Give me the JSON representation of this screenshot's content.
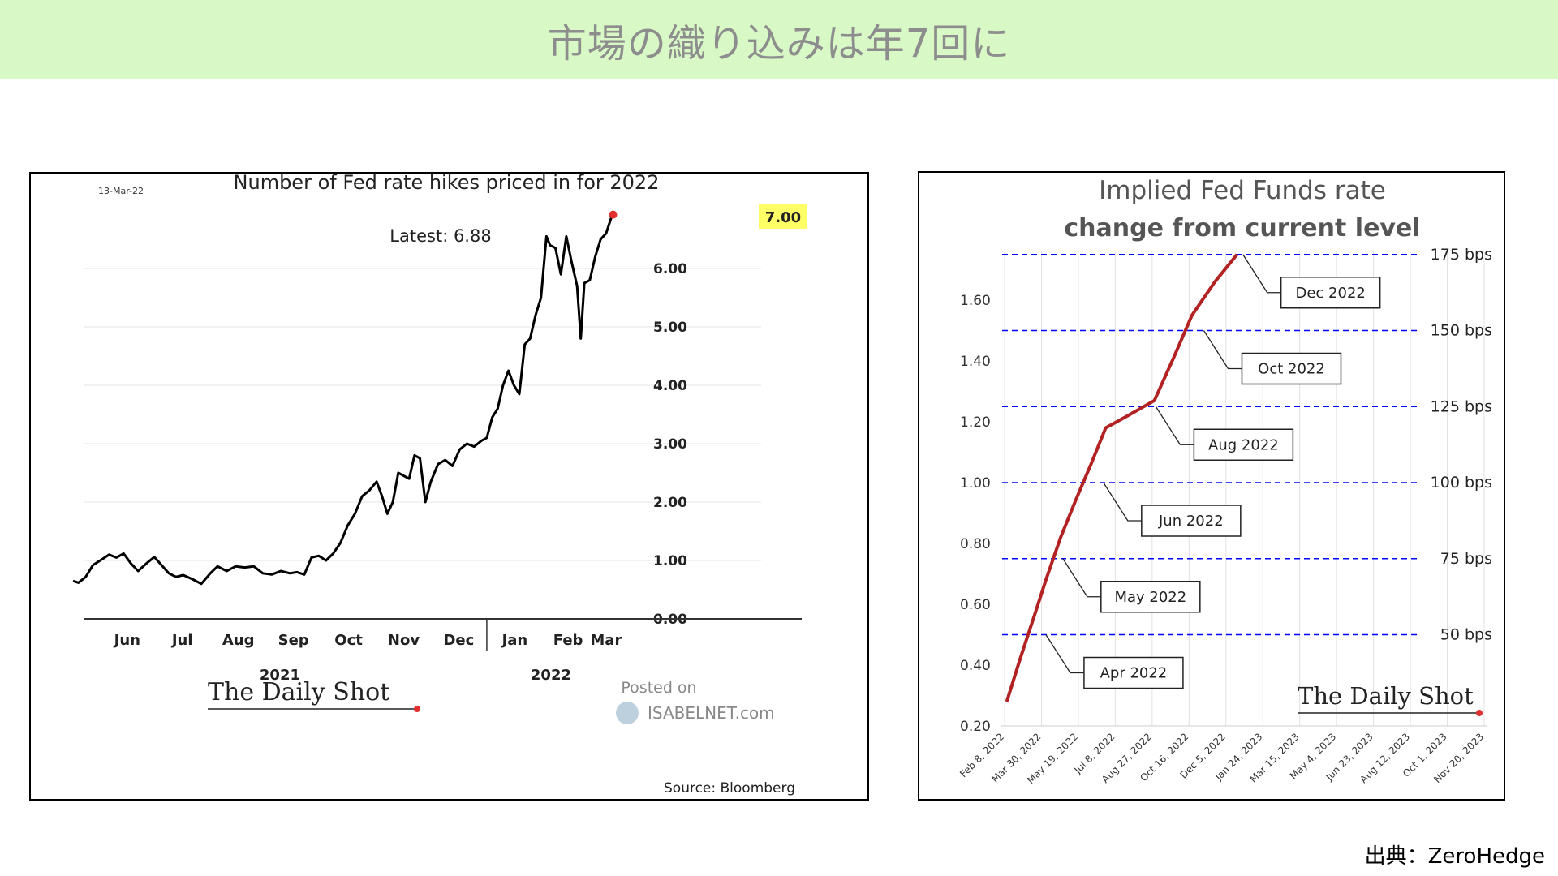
{
  "page": {
    "title": "市場の織り込みは年7回に",
    "source_credit": "出典：ZeroHedge"
  },
  "chart_data": [
    {
      "type": "line",
      "title": "Number of Fed rate hikes priced in for 2022",
      "date_stamp": "13-Mar-22",
      "annotation": "Latest:  6.88",
      "highlight_label": "7.00",
      "source": "Source: Bloomberg",
      "branding": "The Daily Shot",
      "watermark_line1": "Posted on",
      "watermark_line2": "ISABELNET.com",
      "ylim": [
        0,
        7
      ],
      "y_ticks": [
        "0.00",
        "1.00",
        "2.00",
        "3.00",
        "4.00",
        "5.00",
        "6.00"
      ],
      "x_tick_labels": [
        "Jun",
        "Jul",
        "Aug",
        "Sep",
        "Oct",
        "Nov",
        "Dec",
        "Jan",
        "Feb",
        "Mar"
      ],
      "x_groups": [
        "2021",
        "2022"
      ],
      "x_start": "2021-05-17",
      "x_end": "2022-03-13",
      "line_color": "#000000",
      "series": [
        {
          "points": [
            [
              "2021-05-17",
              0.65
            ],
            [
              "2021-05-20",
              0.62
            ],
            [
              "2021-05-24",
              0.72
            ],
            [
              "2021-05-28",
              0.92
            ],
            [
              "2021-06-02",
              1.02
            ],
            [
              "2021-06-06",
              1.1
            ],
            [
              "2021-06-10",
              1.05
            ],
            [
              "2021-06-14",
              1.12
            ],
            [
              "2021-06-18",
              0.95
            ],
            [
              "2021-06-22",
              0.82
            ],
            [
              "2021-06-27",
              0.96
            ],
            [
              "2021-07-01",
              1.06
            ],
            [
              "2021-07-05",
              0.92
            ],
            [
              "2021-07-09",
              0.78
            ],
            [
              "2021-07-13",
              0.72
            ],
            [
              "2021-07-17",
              0.75
            ],
            [
              "2021-07-22",
              0.68
            ],
            [
              "2021-07-27",
              0.6
            ],
            [
              "2021-08-01",
              0.78
            ],
            [
              "2021-08-05",
              0.9
            ],
            [
              "2021-08-10",
              0.82
            ],
            [
              "2021-08-15",
              0.9
            ],
            [
              "2021-08-20",
              0.88
            ],
            [
              "2021-08-25",
              0.9
            ],
            [
              "2021-08-30",
              0.78
            ],
            [
              "2021-09-04",
              0.76
            ],
            [
              "2021-09-09",
              0.82
            ],
            [
              "2021-09-14",
              0.78
            ],
            [
              "2021-09-18",
              0.8
            ],
            [
              "2021-09-22",
              0.76
            ],
            [
              "2021-09-26",
              1.05
            ],
            [
              "2021-09-30",
              1.08
            ],
            [
              "2021-10-04",
              1.0
            ],
            [
              "2021-10-08",
              1.12
            ],
            [
              "2021-10-12",
              1.3
            ],
            [
              "2021-10-16",
              1.6
            ],
            [
              "2021-10-20",
              1.8
            ],
            [
              "2021-10-24",
              2.1
            ],
            [
              "2021-10-28",
              2.2
            ],
            [
              "2021-11-01",
              2.35
            ],
            [
              "2021-11-04",
              2.1
            ],
            [
              "2021-11-07",
              1.8
            ],
            [
              "2021-11-10",
              2.0
            ],
            [
              "2021-11-13",
              2.5
            ],
            [
              "2021-11-16",
              2.45
            ],
            [
              "2021-11-19",
              2.4
            ],
            [
              "2021-11-22",
              2.8
            ],
            [
              "2021-11-25",
              2.75
            ],
            [
              "2021-11-28",
              2.0
            ],
            [
              "2021-12-01",
              2.35
            ],
            [
              "2021-12-05",
              2.65
            ],
            [
              "2021-12-09",
              2.72
            ],
            [
              "2021-12-13",
              2.62
            ],
            [
              "2021-12-17",
              2.9
            ],
            [
              "2021-12-21",
              3.0
            ],
            [
              "2021-12-25",
              2.95
            ],
            [
              "2021-12-29",
              3.05
            ],
            [
              "2022-01-01",
              3.1
            ],
            [
              "2022-01-04",
              3.45
            ],
            [
              "2022-01-07",
              3.6
            ],
            [
              "2022-01-10",
              4.0
            ],
            [
              "2022-01-13",
              4.25
            ],
            [
              "2022-01-16",
              4.0
            ],
            [
              "2022-01-19",
              3.85
            ],
            [
              "2022-01-22",
              4.7
            ],
            [
              "2022-01-25",
              4.8
            ],
            [
              "2022-01-28",
              5.2
            ],
            [
              "2022-01-31",
              5.5
            ],
            [
              "2022-02-03",
              6.55
            ],
            [
              "2022-02-05",
              6.4
            ],
            [
              "2022-02-08",
              6.35
            ],
            [
              "2022-02-11",
              5.9
            ],
            [
              "2022-02-14",
              6.55
            ],
            [
              "2022-02-17",
              6.1
            ],
            [
              "2022-02-20",
              5.7
            ],
            [
              "2022-02-22",
              4.8
            ],
            [
              "2022-02-24",
              5.75
            ],
            [
              "2022-02-27",
              5.8
            ],
            [
              "2022-03-02",
              6.2
            ],
            [
              "2022-03-05",
              6.5
            ],
            [
              "2022-03-08",
              6.6
            ],
            [
              "2022-03-11",
              6.88
            ]
          ]
        }
      ]
    },
    {
      "type": "line",
      "title": "Implied Fed Funds rate",
      "subtitle": "change from current level",
      "branding": "The Daily Shot",
      "ylim": [
        0.2,
        1.8
      ],
      "y_ticks": [
        "0.20",
        "0.40",
        "0.60",
        "0.80",
        "1.00",
        "1.20",
        "1.40",
        "1.60"
      ],
      "x_tick_labels": [
        "Feb 8, 2022",
        "Mar 30, 2022",
        "May 19, 2022",
        "Jul 8, 2022",
        "Aug 27, 2022",
        "Oct 16, 2022",
        "Dec 5, 2022",
        "Jan 24, 2023",
        "Mar 15, 2023",
        "May 4, 2023",
        "Jun 23, 2023",
        "Aug 12, 2023",
        "Oct 1, 2023",
        "Nov 20, 2023"
      ],
      "x_start": "2022-02-08",
      "x_end": "2023-11-20",
      "line_color": "#b22222",
      "reference_lines": [
        {
          "value": 0.5,
          "label": "50 bps"
        },
        {
          "value": 0.75,
          "label": "75 bps"
        },
        {
          "value": 1.0,
          "label": "100 bps"
        },
        {
          "value": 1.25,
          "label": "125 bps"
        },
        {
          "value": 1.5,
          "label": "150 bps"
        },
        {
          "value": 1.75,
          "label": "175 bps"
        }
      ],
      "reference_line_color": "#0000ff",
      "annotations": [
        {
          "label": "Apr 2022",
          "x": "2022-04-05",
          "y": 0.5
        },
        {
          "label": "May 2022",
          "x": "2022-04-28",
          "y": 0.75
        },
        {
          "label": "Jun 2022",
          "x": "2022-06-22",
          "y": 1.0
        },
        {
          "label": "Aug 2022",
          "x": "2022-09-01",
          "y": 1.25
        },
        {
          "label": "Oct 2022",
          "x": "2022-11-05",
          "y": 1.5
        },
        {
          "label": "Dec 2022",
          "x": "2022-12-28",
          "y": 1.75
        }
      ],
      "series": [
        {
          "points": [
            [
              "2022-02-11",
              0.28
            ],
            [
              "2022-03-01",
              0.42
            ],
            [
              "2022-03-20",
              0.56
            ],
            [
              "2022-04-05",
              0.68
            ],
            [
              "2022-04-25",
              0.82
            ],
            [
              "2022-05-15",
              0.94
            ],
            [
              "2022-06-05",
              1.06
            ],
            [
              "2022-06-25",
              1.18
            ],
            [
              "2022-07-25",
              1.22
            ],
            [
              "2022-08-30",
              1.27
            ],
            [
              "2022-09-25",
              1.41
            ],
            [
              "2022-10-20",
              1.55
            ],
            [
              "2022-11-20",
              1.66
            ],
            [
              "2022-12-20",
              1.75
            ]
          ]
        }
      ]
    }
  ]
}
